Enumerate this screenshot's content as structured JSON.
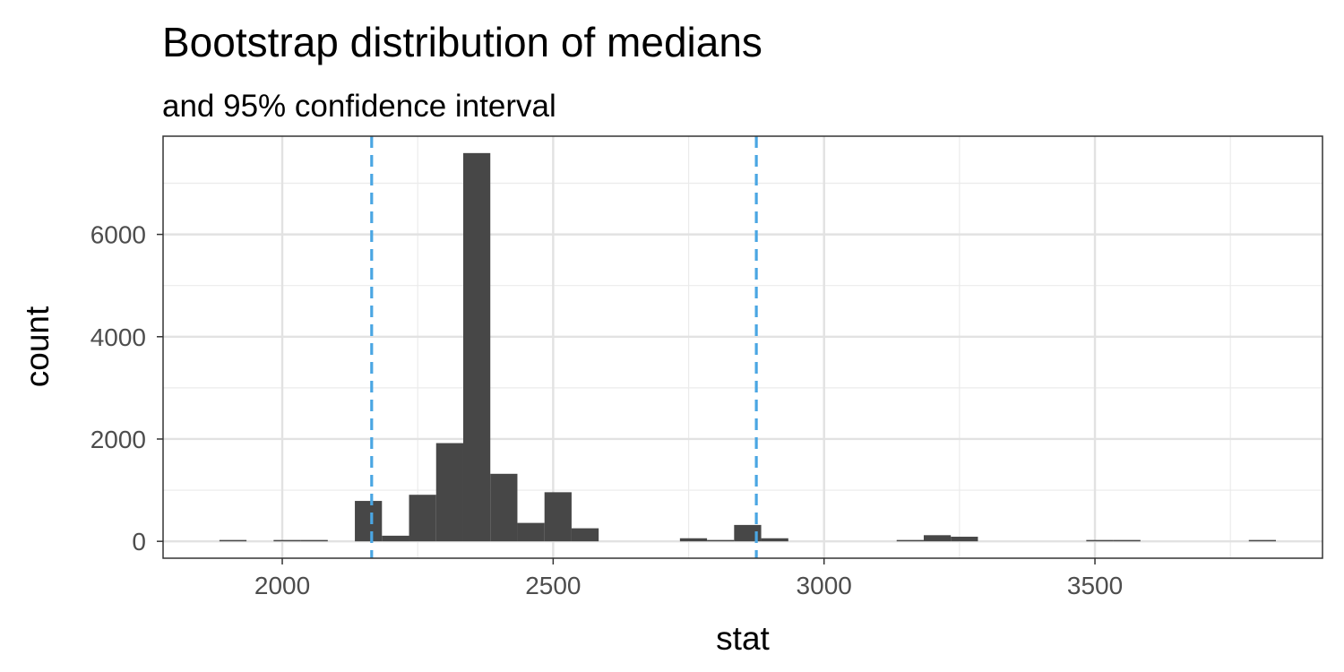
{
  "chart_data": {
    "type": "bar",
    "title": "Bootstrap distribution of medians",
    "subtitle": "and 95% confidence interval",
    "xlabel": "stat",
    "ylabel": "count",
    "xlim": [
      1780,
      3920
    ],
    "ylim": [
      -330,
      7920
    ],
    "x_ticks": [
      2000,
      2500,
      3000,
      3500
    ],
    "x_tick_labels": [
      "2000",
      "2500",
      "3000",
      "3500"
    ],
    "x_minor_ticks": [
      2250,
      2750,
      3250,
      3750
    ],
    "y_ticks": [
      0,
      2000,
      4000,
      6000
    ],
    "y_tick_labels": [
      "0",
      "2000",
      "4000",
      "6000"
    ],
    "y_minor_ticks": [
      1000,
      3000,
      5000,
      7000
    ],
    "grid": true,
    "bar_color": "#474747",
    "ci_line_color": "#4aa6e3",
    "bin_width": 50,
    "bin_centers": [
      1909,
      2009,
      2059,
      2159,
      2209,
      2259,
      2309,
      2359,
      2409,
      2459,
      2509,
      2559,
      2759,
      2809,
      2859,
      2909,
      3159,
      3209,
      3259,
      3509,
      3559,
      3809
    ],
    "values": [
      5,
      5,
      5,
      790,
      110,
      910,
      1920,
      7590,
      1320,
      360,
      960,
      255,
      60,
      5,
      320,
      60,
      5,
      120,
      90,
      5,
      5,
      5
    ],
    "confidence_interval": [
      2165,
      2875
    ]
  }
}
